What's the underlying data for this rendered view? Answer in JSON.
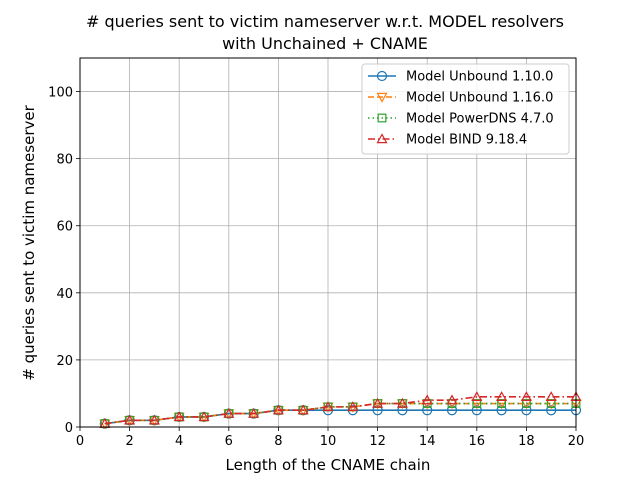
{
  "chart_data": {
    "type": "line",
    "title_line1": "# queries sent to victim nameserver w.r.t. MODEL resolvers",
    "title_line2": "with Unchained + CNAME",
    "xlabel": "Length of the CNAME chain",
    "ylabel": "# queries sent to victim nameserver",
    "xlim": [
      0,
      20
    ],
    "ylim": [
      0,
      110
    ],
    "xticks": [
      0,
      2,
      4,
      6,
      8,
      10,
      12,
      14,
      16,
      18,
      20
    ],
    "yticks": [
      0,
      20,
      40,
      60,
      80,
      100
    ],
    "grid": true,
    "legend_position": "upper-right",
    "x": [
      1,
      2,
      3,
      4,
      5,
      6,
      7,
      8,
      9,
      10,
      11,
      12,
      13,
      14,
      15,
      16,
      17,
      18,
      19,
      20
    ],
    "series": [
      {
        "name": "Model Unbound 1.10.0",
        "color": "#1f77b4",
        "dash": "solid",
        "marker": "circle",
        "values": [
          1,
          2,
          2,
          3,
          3,
          4,
          4,
          5,
          5,
          5,
          5,
          5,
          5,
          5,
          5,
          5,
          5,
          5,
          5,
          5
        ]
      },
      {
        "name": "Model Unbound 1.16.0",
        "color": "#ff7f0e",
        "dash": "dashed",
        "marker": "triangle-down",
        "values": [
          1,
          2,
          2,
          3,
          3,
          4,
          4,
          5,
          5,
          6,
          6,
          7,
          7,
          7,
          7,
          7,
          7,
          7,
          7,
          7
        ]
      },
      {
        "name": "Model PowerDNS 4.7.0",
        "color": "#2ca02c",
        "dash": "dotted",
        "marker": "square",
        "values": [
          1,
          2,
          2,
          3,
          3,
          4,
          4,
          5,
          5,
          6,
          6,
          7,
          7,
          7,
          7,
          7,
          7,
          7,
          7,
          7
        ]
      },
      {
        "name": "Model BIND 9.18.4",
        "color": "#d62728",
        "dash": "dashdot",
        "marker": "triangle-up",
        "values": [
          1,
          2,
          2,
          3,
          3,
          4,
          4,
          5,
          5,
          6,
          6,
          7,
          7,
          8,
          8,
          9,
          9,
          9,
          9,
          9
        ]
      }
    ]
  }
}
